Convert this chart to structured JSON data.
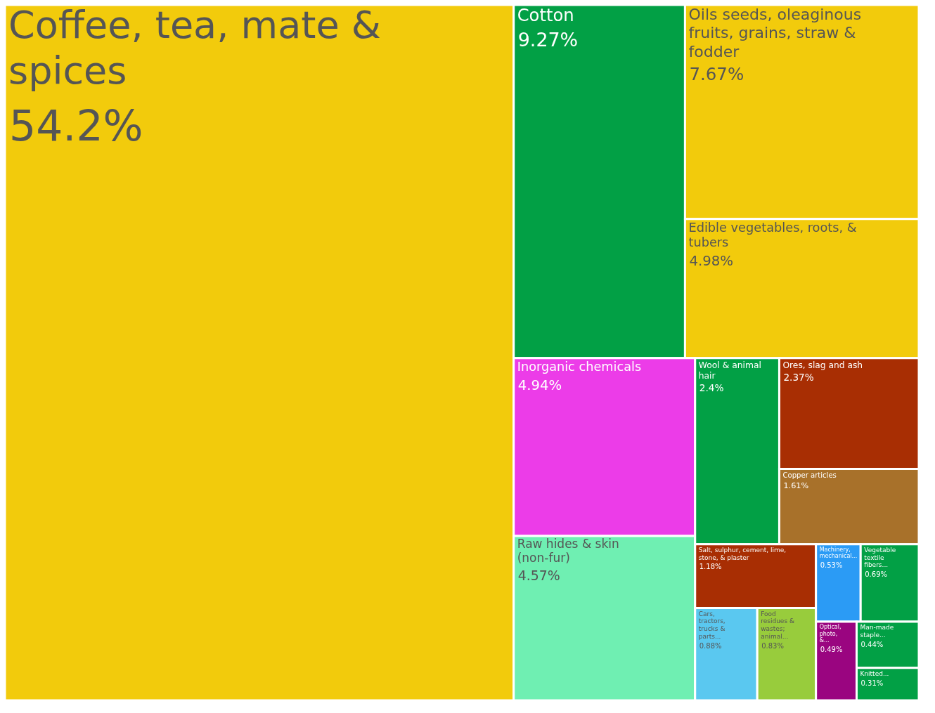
{
  "chart_data": {
    "type": "other",
    "categories": [
      "Coffee, tea, mate & spices",
      "Cotton",
      "Oils seeds, oleaginous fruits, grains, straw & fodder",
      "Edible vegetables, roots, & tubers",
      "Inorganic chemicals",
      "Raw hides & skin (non-fur)",
      "Wool & animal hair",
      "Ores, slag and ash",
      "Copper articles",
      "Salt, sulphur, cement, lime, stone, & plaster",
      "Cars, tractors, trucks & parts...",
      "Food residues & wastes; animal...",
      "Machinery, mechanical...",
      "Vegetable textile fibers...",
      "Optical, photo, &...",
      "Man-made staple...",
      "Knitted..."
    ],
    "values": [
      54.2,
      9.27,
      7.67,
      4.98,
      4.94,
      4.57,
      2.4,
      2.37,
      1.61,
      1.18,
      0.88,
      0.83,
      0.53,
      0.69,
      0.49,
      0.44,
      0.31
    ],
    "value_labels": [
      "54.2%",
      "9.27%",
      "7.67%",
      "4.98%",
      "4.94%",
      "4.57%",
      "2.4%",
      "2.37%",
      "1.61%",
      "1.18%",
      "0.88%",
      "0.83%",
      "0.53%",
      "0.69%",
      "0.49%",
      "0.44%",
      "0.31%"
    ],
    "colors": [
      "#f2cb0c",
      "#02a045",
      "#f2cb0c",
      "#f2cb0c",
      "#ec3ce8",
      "#6fefb2",
      "#02a045",
      "#a82e03",
      "#a8712a",
      "#a82e03",
      "#5ac8f0",
      "#98cc3c",
      "#2b9bf5",
      "#02a045",
      "#9a0580",
      "#02a045",
      "#02a045"
    ]
  }
}
